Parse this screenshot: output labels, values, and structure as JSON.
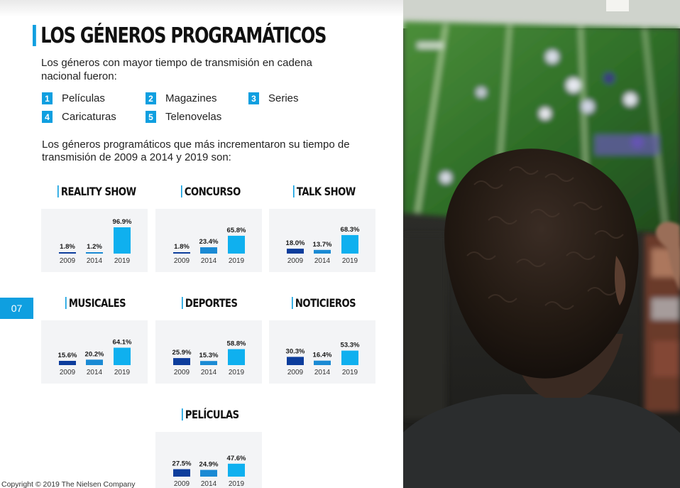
{
  "title": "LOS GÉNEROS PROGRAMÁTICOS",
  "intro_text": "Los géneros con mayor tiempo de transmisión en cadena nacional fueron:",
  "top_genres": [
    {
      "num": "1",
      "label": "Películas"
    },
    {
      "num": "2",
      "label": "Magazines"
    },
    {
      "num": "3",
      "label": "Series"
    },
    {
      "num": "4",
      "label": "Caricaturas"
    },
    {
      "num": "5",
      "label": "Telenovelas"
    }
  ],
  "increase_text": "Los géneros programáticos que más incrementaron su tiempo de transmisión de 2009 a 2014 y 2019 son:",
  "page_number": "07",
  "copyright": "Copyright © 2019 The Nielsen Company",
  "colors": {
    "accent": "#0f9fe0",
    "y2009": "#0d3d9c",
    "y2014": "#1a8ad4",
    "y2019": "#0fb0ef"
  },
  "chart_data": [
    {
      "type": "bar",
      "title": "REALITY SHOW",
      "categories": [
        "2009",
        "2014",
        "2019"
      ],
      "values": [
        1.8,
        1.2,
        96.9
      ],
      "labels": [
        "1.8%",
        "1.2%",
        "96.9%"
      ]
    },
    {
      "type": "bar",
      "title": "CONCURSO",
      "categories": [
        "2009",
        "2014",
        "2019"
      ],
      "values": [
        1.8,
        23.4,
        65.8
      ],
      "labels": [
        "1.8%",
        "23.4%",
        "65.8%"
      ]
    },
    {
      "type": "bar",
      "title": "TALK SHOW",
      "categories": [
        "2009",
        "2014",
        "2019"
      ],
      "values": [
        18.0,
        13.7,
        68.3
      ],
      "labels": [
        "18.0%",
        "13.7%",
        "68.3%"
      ]
    },
    {
      "type": "bar",
      "title": "MUSICALES",
      "categories": [
        "2009",
        "2014",
        "2019"
      ],
      "values": [
        15.6,
        20.2,
        64.1
      ],
      "labels": [
        "15.6%",
        "20.2%",
        "64.1%"
      ]
    },
    {
      "type": "bar",
      "title": "DEPORTES",
      "categories": [
        "2009",
        "2014",
        "2019"
      ],
      "values": [
        25.9,
        15.3,
        58.8
      ],
      "labels": [
        "25.9%",
        "15.3%",
        "58.8%"
      ]
    },
    {
      "type": "bar",
      "title": "NOTICIEROS",
      "categories": [
        "2009",
        "2014",
        "2019"
      ],
      "values": [
        30.3,
        16.4,
        53.3
      ],
      "labels": [
        "30.3%",
        "16.4%",
        "53.3%"
      ]
    },
    {
      "type": "bar",
      "title": "PELÍCULAS",
      "categories": [
        "2009",
        "2014",
        "2019"
      ],
      "values": [
        27.5,
        24.9,
        47.6
      ],
      "labels": [
        "27.5%",
        "24.9%",
        "47.6%"
      ]
    }
  ]
}
